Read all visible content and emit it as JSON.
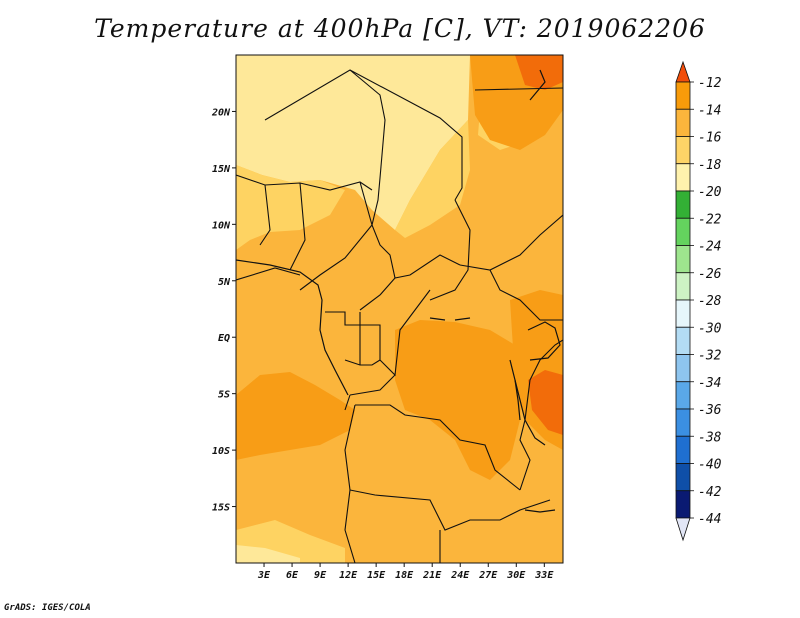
{
  "title": "Temperature at 400hPa [C], VT: 2019062206",
  "credit": "GrADS: IGES/COLA",
  "map": {
    "lon_range": [
      0,
      35
    ],
    "lat_range": [
      -20,
      25
    ],
    "x_ticks": [
      "3E",
      "6E",
      "9E",
      "12E",
      "15E",
      "18E",
      "21E",
      "24E",
      "27E",
      "30E",
      "33E"
    ],
    "x_tick_values": [
      3,
      6,
      9,
      12,
      15,
      18,
      21,
      24,
      27,
      30,
      33
    ],
    "y_ticks": [
      "20N",
      "15N",
      "10N",
      "5N",
      "EQ",
      "5S",
      "10S",
      "15S"
    ],
    "y_tick_values": [
      20,
      15,
      10,
      5,
      0,
      -5,
      -10,
      -15
    ],
    "fill_colors": {
      "dominant": "#fbb53c",
      "band_-20": "#fee899",
      "band_-18": "#fed362",
      "band_-16": "#fbb53c",
      "band_-14": "#f89d16",
      "band_-12": "#f26c0a",
      "band_-22": "#fff5c8"
    },
    "boundary_color": "#111111"
  },
  "colorbar": {
    "labels": [
      "-12",
      "-14",
      "-16",
      "-18",
      "-20",
      "-22",
      "-24",
      "-26",
      "-28",
      "-30",
      "-32",
      "-34",
      "-36",
      "-38",
      "-40",
      "-42",
      "-44"
    ],
    "colors": [
      "#f16913",
      "#f89b0a",
      "#fbb53c",
      "#fed467",
      "#fff2ad",
      "#33b035",
      "#64d35e",
      "#9ee58e",
      "#cdf3c4",
      "#e6f6fb",
      "#b3dcf4",
      "#8ec5ef",
      "#5aa8e8",
      "#3b8fe2",
      "#1f6fd1",
      "#0f4fa8",
      "#0a1a72"
    ],
    "top_arrow_color": "#f24e0a",
    "bottom_arrow_color": "#e2e6f6"
  }
}
